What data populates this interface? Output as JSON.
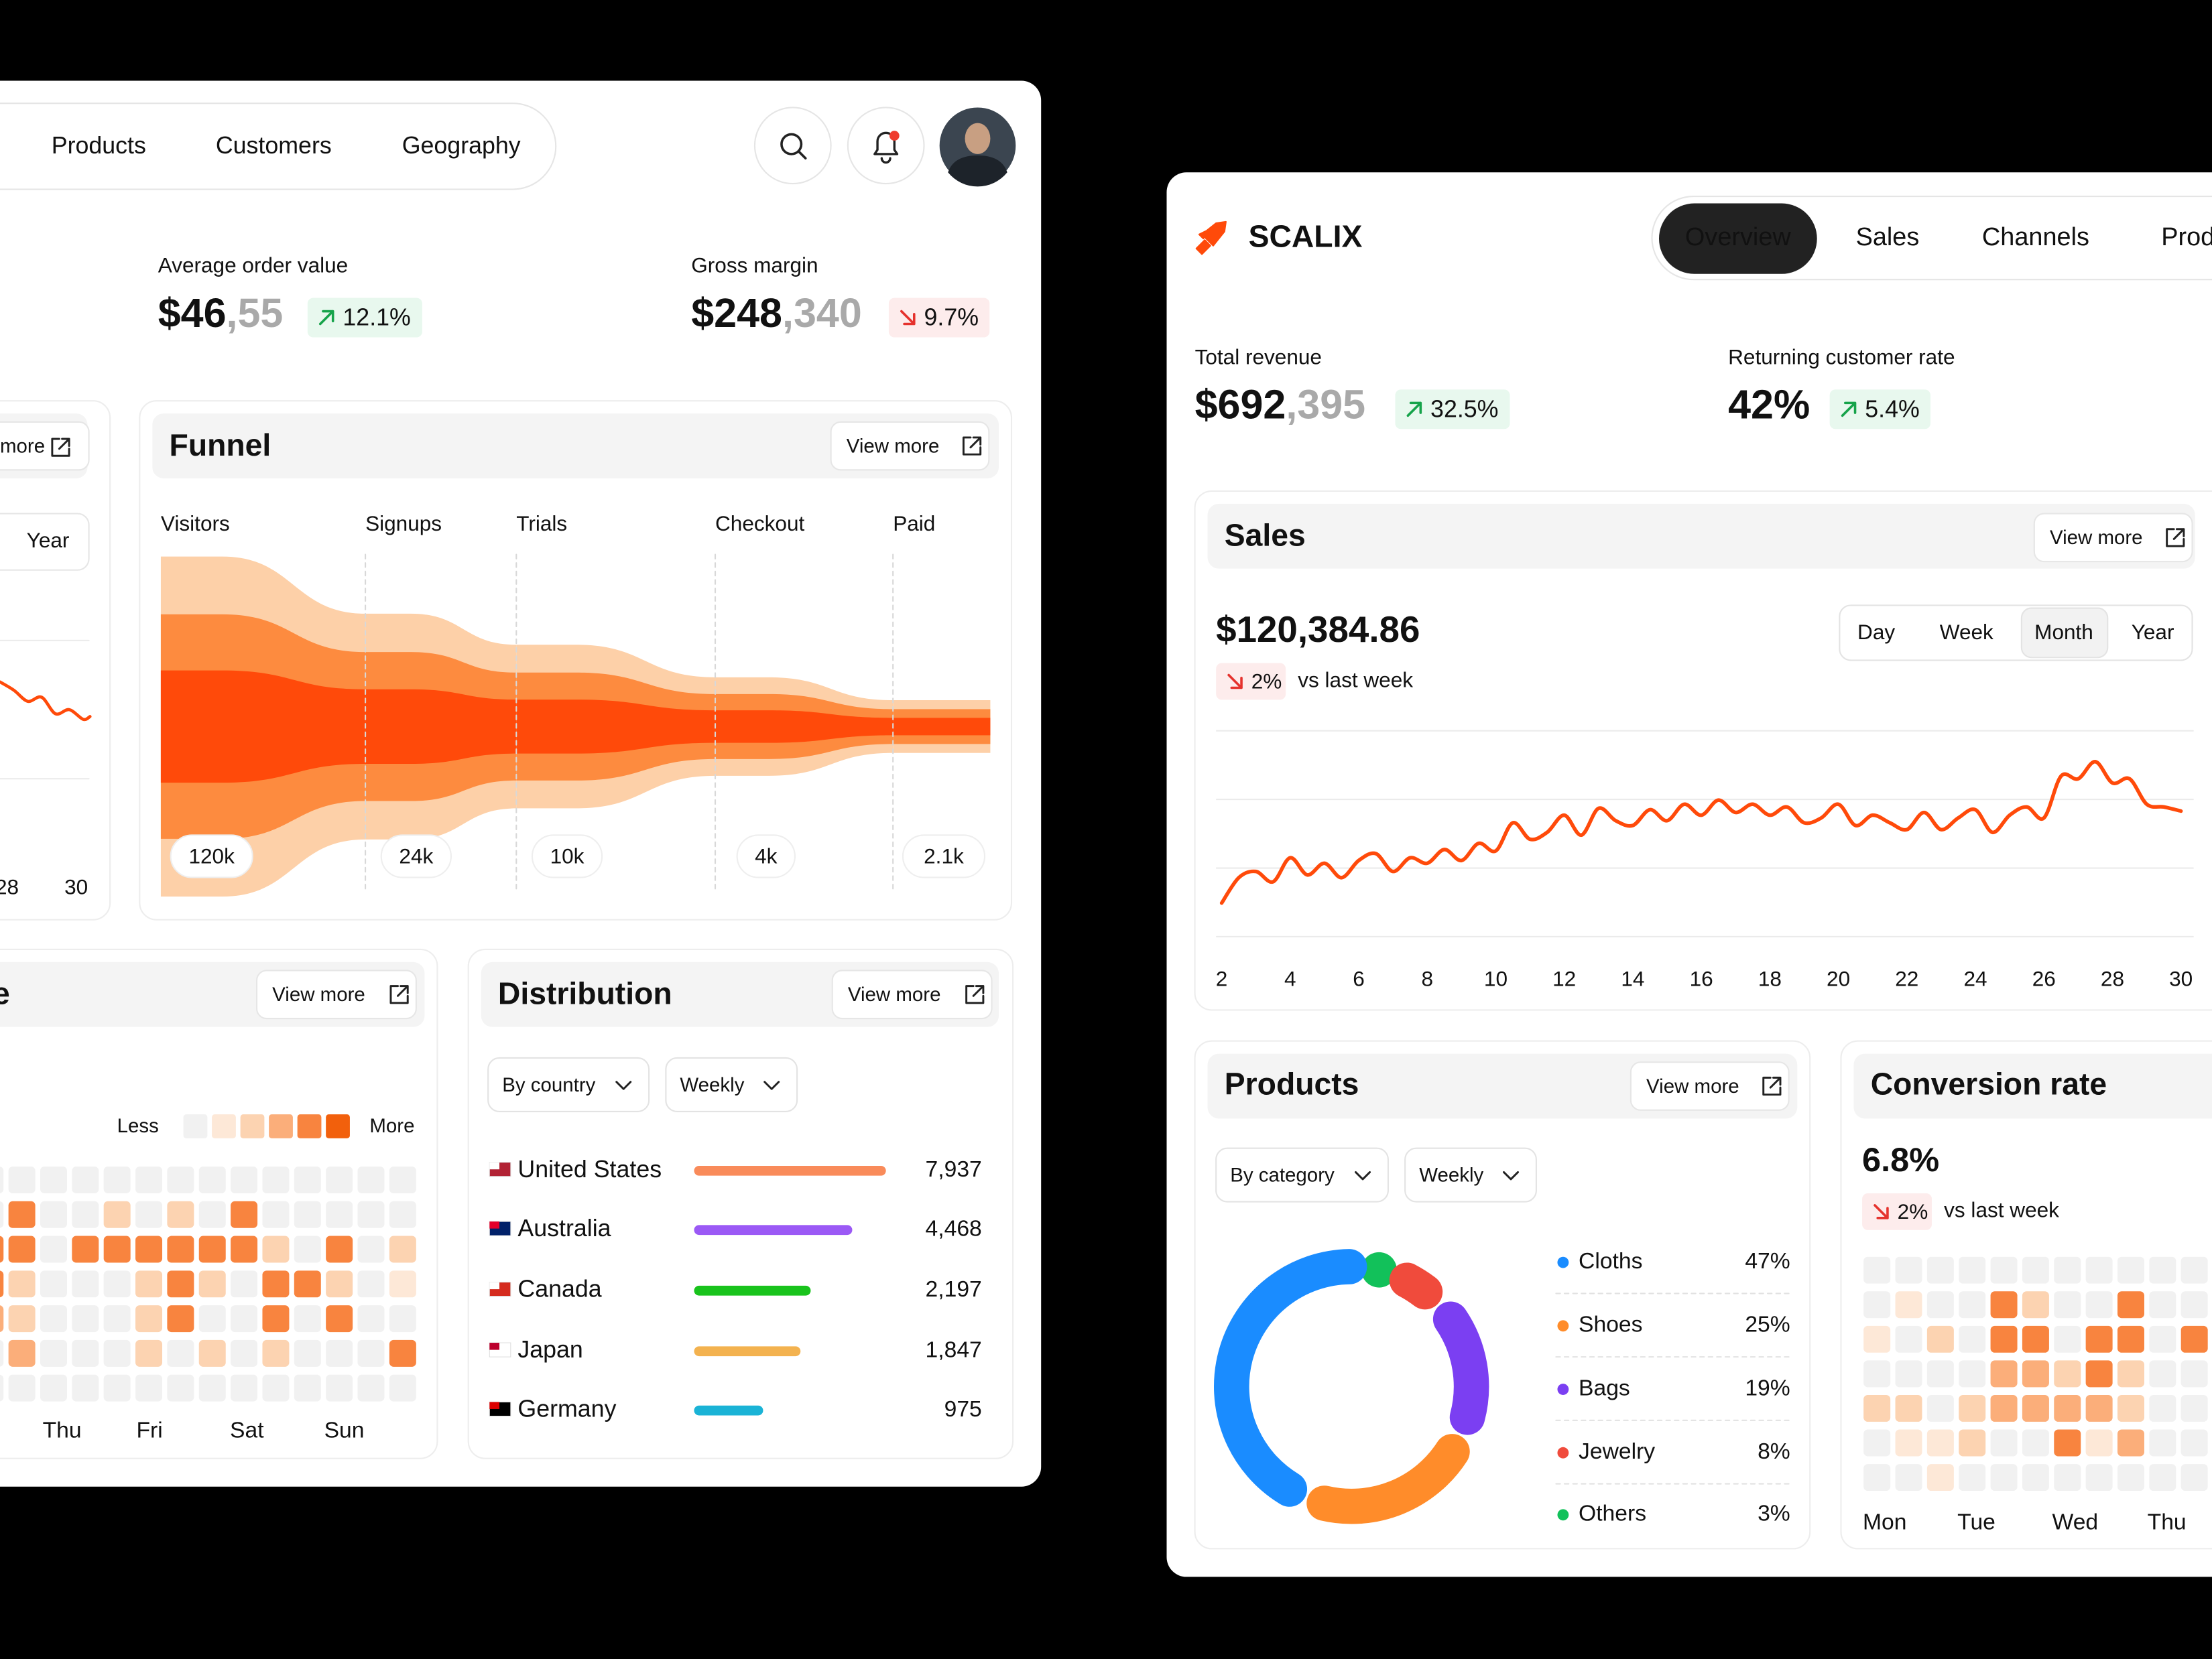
{
  "left_dashboard": {
    "nav": [
      "Products",
      "Customers",
      "Geography"
    ],
    "metrics": [
      {
        "label": "Average order value",
        "value": "$46",
        "decimals": ",55",
        "change": "12.1%",
        "trend": "up"
      },
      {
        "label": "Gross margin",
        "value": "$248",
        "decimals": ",340",
        "change": "9.7%",
        "trend": "down"
      }
    ],
    "trend_card": {
      "type": "line",
      "button": "more",
      "period": "Year",
      "x": [
        27.8,
        28.2,
        28.6,
        29.0,
        29.4,
        29.8,
        30.2,
        30.4
      ],
      "values": [
        70,
        64,
        56,
        59,
        47,
        50,
        43,
        45
      ],
      "xlim": [
        27.6,
        30.4
      ],
      "xticks": [
        28,
        30
      ],
      "ylim": [
        0,
        100
      ],
      "color": "#ff4a0a"
    },
    "funnel": {
      "type": "funnel",
      "title": "Funnel",
      "button": "View more",
      "categories": [
        "Visitors",
        "Signups",
        "Trials",
        "Checkout",
        "Paid"
      ],
      "values": [
        120000,
        24000,
        10000,
        4000,
        2100
      ],
      "value_labels": [
        "120k",
        "24k",
        "10k",
        "4k",
        "2.1k"
      ],
      "log_scale": true,
      "colors": [
        "#fdd0a8",
        "#fd8b3f",
        "#ff4a0a"
      ]
    },
    "activity": {
      "type": "heatmap",
      "title": "e",
      "button": "View more",
      "legend": [
        "Less",
        "More"
      ],
      "days": [
        "Thu",
        "Fri",
        "Sat",
        "Sun"
      ],
      "level_colors": [
        "#f1f1f1",
        "#fde8d7",
        "#fcd3b1",
        "#fbae7a",
        "#f8843f",
        "#f2600c"
      ],
      "levels": [
        [
          0,
          0,
          0,
          0,
          0,
          0,
          0,
          0,
          0,
          0,
          0,
          0,
          0,
          0
        ],
        [
          0,
          4,
          0,
          0,
          2,
          0,
          2,
          0,
          4,
          0,
          0,
          0,
          0,
          0
        ],
        [
          4,
          4,
          0,
          4,
          4,
          4,
          4,
          4,
          4,
          2,
          0,
          4,
          0,
          2
        ],
        [
          4,
          2,
          0,
          0,
          0,
          2,
          4,
          2,
          0,
          4,
          4,
          2,
          0,
          1
        ],
        [
          3,
          2,
          0,
          0,
          0,
          2,
          4,
          0,
          0,
          4,
          0,
          4,
          0,
          0
        ],
        [
          0,
          3,
          0,
          0,
          0,
          2,
          0,
          2,
          0,
          2,
          0,
          0,
          0,
          4
        ],
        [
          0,
          0,
          0,
          0,
          0,
          0,
          0,
          0,
          0,
          0,
          0,
          0,
          0,
          0
        ]
      ]
    },
    "distribution": {
      "type": "bar",
      "title": "Distribution",
      "button": "View more",
      "filters": [
        "By country",
        "Weekly"
      ],
      "categories": [
        "United States",
        "Australia",
        "Canada",
        "Japan",
        "Germany"
      ],
      "values": [
        7937,
        4468,
        2197,
        1847,
        975
      ],
      "value_labels": [
        "7,937",
        "4,468",
        "2,197",
        "1,847",
        "975"
      ],
      "colors": [
        "#f98b5a",
        "#9b59f5",
        "#19c31c",
        "#f3b24f",
        "#1ab3d6"
      ],
      "log_scale": true,
      "xlim": [
        300,
        7937
      ]
    }
  },
  "right_dashboard": {
    "brand": "SCALIX",
    "tabs": [
      "Overview",
      "Sales",
      "Channels",
      "Produ"
    ],
    "active_tab": 0,
    "metrics": [
      {
        "label": "Total revenue",
        "value": "$692",
        "decimals": ",395",
        "change": "32.5%",
        "trend": "up"
      },
      {
        "label": "Returning customer rate",
        "value": "42%",
        "change": "5.4%",
        "trend": "up"
      }
    ],
    "sales": {
      "type": "line",
      "title": "Sales",
      "button": "View more",
      "total": "$120,384.86",
      "change": "2%",
      "trend": "down",
      "comparison": "vs last week",
      "periods": [
        "Day",
        "Week",
        "Month",
        "Year"
      ],
      "active_period": 2,
      "x": [
        2,
        2.5,
        3,
        3.5,
        4,
        4.5,
        5,
        5.5,
        6,
        6.5,
        7,
        7.5,
        8,
        8.5,
        9,
        9.5,
        10,
        10.5,
        11,
        11.5,
        12,
        12.5,
        13,
        13.5,
        14,
        14.5,
        15,
        15.5,
        16,
        16.5,
        17,
        17.5,
        18,
        18.5,
        19,
        19.5,
        20,
        20.5,
        21,
        21.5,
        22,
        22.5,
        23,
        23.5,
        24,
        24.5,
        25,
        25.5,
        26,
        26.5,
        27,
        27.5,
        28,
        28.5,
        29,
        29.5,
        30
      ],
      "values": [
        49,
        86,
        95,
        80,
        115,
        90,
        107,
        86,
        111,
        121,
        95,
        115,
        107,
        127,
        111,
        136,
        125,
        166,
        142,
        152,
        177,
        148,
        187,
        169,
        162,
        185,
        169,
        193,
        177,
        199,
        181,
        193,
        177,
        189,
        166,
        173,
        193,
        162,
        177,
        166,
        156,
        181,
        156,
        173,
        185,
        152,
        177,
        189,
        173,
        234,
        230,
        255,
        224,
        230,
        193,
        189,
        183
      ],
      "xlim": [
        2,
        30
      ],
      "xticks": [
        2,
        4,
        6,
        8,
        10,
        12,
        14,
        16,
        18,
        20,
        22,
        24,
        26,
        28,
        30
      ],
      "ylim": [
        0,
        300
      ],
      "grid_lines": [
        0,
        100,
        200,
        300
      ],
      "color": "#ff4a0a"
    },
    "products": {
      "type": "donut",
      "title": "Products",
      "button": "View more",
      "filters": [
        "By category",
        "Weekly"
      ],
      "categories": [
        "Cloths",
        "Shoes",
        "Bags",
        "Jewelry",
        "Others"
      ],
      "values": [
        47,
        25,
        19,
        8,
        3
      ],
      "value_labels": [
        "47%",
        "25%",
        "19%",
        "8%",
        "3%"
      ],
      "colors": [
        "#1a8cff",
        "#ff8c2a",
        "#7b3ff2",
        "#f04b3c",
        "#12c15a"
      ]
    },
    "conversion": {
      "type": "heatmap",
      "title": "Conversion rate",
      "value": "6.8%",
      "change": "2%",
      "trend": "down",
      "comparison": "vs last week",
      "days": [
        "Mon",
        "Tue",
        "Wed",
        "Thu"
      ],
      "level_colors": [
        "#f1f1f1",
        "#fde8d7",
        "#fcd3b1",
        "#fbae7a",
        "#f8843f",
        "#f2600c"
      ],
      "levels": [
        [
          0,
          0,
          0,
          0,
          0,
          0,
          0,
          0,
          0,
          0,
          0
        ],
        [
          0,
          1,
          0,
          0,
          4,
          2,
          0,
          0,
          4,
          0,
          0
        ],
        [
          1,
          0,
          2,
          0,
          4,
          4,
          0,
          4,
          4,
          0,
          4
        ],
        [
          0,
          0,
          0,
          0,
          3,
          3,
          2,
          4,
          2,
          0,
          0
        ],
        [
          2,
          2,
          0,
          2,
          3,
          3,
          3,
          3,
          2,
          0,
          0
        ],
        [
          0,
          1,
          1,
          2,
          0,
          0,
          4,
          1,
          3,
          0,
          0
        ],
        [
          0,
          0,
          1,
          0,
          0,
          0,
          0,
          0,
          0,
          0,
          0
        ]
      ]
    }
  }
}
